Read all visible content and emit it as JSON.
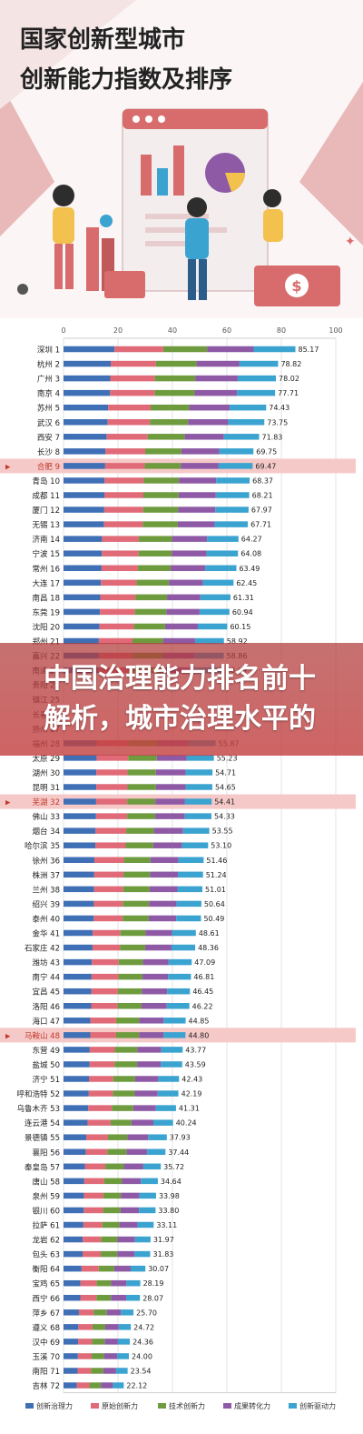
{
  "title": {
    "line1": "国家创新型城市",
    "line2": "创新能力指数及排序"
  },
  "overlay": {
    "line1": "中国治理能力排名前十",
    "line2": "解析，城市治理水平的"
  },
  "colors": {
    "highlight_row": "#f6c9c9",
    "highlight_text": "#c0392b",
    "series": [
      "#3f6fb5",
      "#e06a78",
      "#6f9b3f",
      "#8e5aa6",
      "#3aa3d0"
    ]
  },
  "chart_data": {
    "type": "bar",
    "stacked": true,
    "orientation": "horizontal",
    "xlim": [
      0,
      100
    ],
    "x_ticks": [
      "0",
      "20",
      "40",
      "60",
      "80",
      "100"
    ],
    "grid": true,
    "legend_position": "bottom",
    "categories": [
      "深圳 1",
      "杭州 2",
      "广州 3",
      "南京 4",
      "苏州 5",
      "武汉 6",
      "西安 7",
      "长沙 8",
      "合肥 9",
      "青岛 10",
      "成都 11",
      "厦门 12",
      "无锡 13",
      "济南 14",
      "宁波 15",
      "常州 16",
      "大连 17",
      "南昌 18",
      "东莞 19",
      "沈阳 20",
      "郑州 21",
      "嘉兴 22",
      "南通 23",
      "贵阳 24",
      "镇江 25",
      "长春 26",
      "扬州 27",
      "福州 28",
      "太原 29",
      "湖州 30",
      "昆明 31",
      "芜湖 32",
      "佛山 33",
      "烟台 34",
      "哈尔滨 35",
      "徐州 36",
      "株洲 37",
      "兰州 38",
      "绍兴 39",
      "泰州 40",
      "金华 41",
      "石家庄 42",
      "潍坊 43",
      "南宁 44",
      "宜昌 45",
      "洛阳 46",
      "海口 47",
      "马鞍山 48",
      "东营 49",
      "盐城 50",
      "济宁 51",
      "呼和浩特 52",
      "乌鲁木齐 53",
      "连云港 54",
      "景德镇 55",
      "襄阳 56",
      "秦皇岛 57",
      "唐山 58",
      "泉州 59",
      "银川 60",
      "拉萨 61",
      "龙岩 62",
      "包头 63",
      "衡阳 64",
      "宝鸡 65",
      "西宁 66",
      "萍乡 67",
      "遵义 68",
      "汉中 69",
      "玉溪 70",
      "南阳 71",
      "吉林 72"
    ],
    "totals": [
      85.17,
      78.82,
      78.02,
      77.71,
      74.43,
      73.75,
      71.83,
      69.75,
      69.47,
      68.37,
      68.21,
      67.97,
      67.71,
      64.27,
      64.08,
      63.49,
      62.45,
      61.31,
      60.94,
      60.15,
      58.92,
      58.86,
      58.69,
      null,
      null,
      null,
      null,
      55.87,
      55.23,
      54.71,
      54.65,
      54.41,
      54.33,
      53.55,
      53.1,
      51.46,
      51.24,
      51.01,
      50.64,
      50.49,
      48.61,
      48.36,
      47.09,
      46.81,
      46.45,
      46.22,
      44.85,
      44.8,
      43.77,
      43.59,
      42.43,
      42.19,
      41.31,
      40.24,
      37.93,
      37.44,
      35.72,
      34.64,
      33.98,
      33.8,
      33.11,
      31.97,
      31.83,
      30.07,
      28.19,
      28.07,
      25.7,
      24.72,
      24.36,
      24.0,
      23.54,
      22.12
    ],
    "value_labels": [
      "85.17",
      "78.82",
      "78.02",
      "77.71",
      "74.43",
      "73.75",
      "71.83",
      "69.75",
      "69.47",
      "68.37",
      "68.21",
      "67.97",
      "67.71",
      "64.27",
      "64.08",
      "63.49",
      "62.45",
      "61.31",
      "60.94",
      "60.15",
      "58.92",
      "58.86",
      "58.69",
      "",
      "",
      "",
      "",
      "55.87",
      "55.23",
      "54.71",
      "54.65",
      "54.41",
      "54.33",
      "53.55",
      "53.10",
      "51.46",
      "51.24",
      "51.01",
      "50.64",
      "50.49",
      "48.61",
      "48.36",
      "47.09",
      "46.81",
      "46.45",
      "46.22",
      "44.85",
      "44.80",
      "43.77",
      "43.59",
      "42.43",
      "42.19",
      "41.31",
      "40.24",
      "37.93",
      "37.44",
      "35.72",
      "34.64",
      "33.98",
      "33.80",
      "33.11",
      "31.97",
      "31.83",
      "30.07",
      "28.19",
      "28.07",
      "25.70",
      "24.72",
      "24.36",
      "24.00",
      "23.54",
      "22.12"
    ],
    "highlighted": [
      "合肥 9",
      "芜湖 32",
      "马鞍山 48"
    ],
    "series": [
      {
        "name": "创新治理力"
      },
      {
        "name": "原始创新力"
      },
      {
        "name": "技术创新力"
      },
      {
        "name": "成果转化力"
      },
      {
        "name": "创新驱动力"
      }
    ]
  }
}
